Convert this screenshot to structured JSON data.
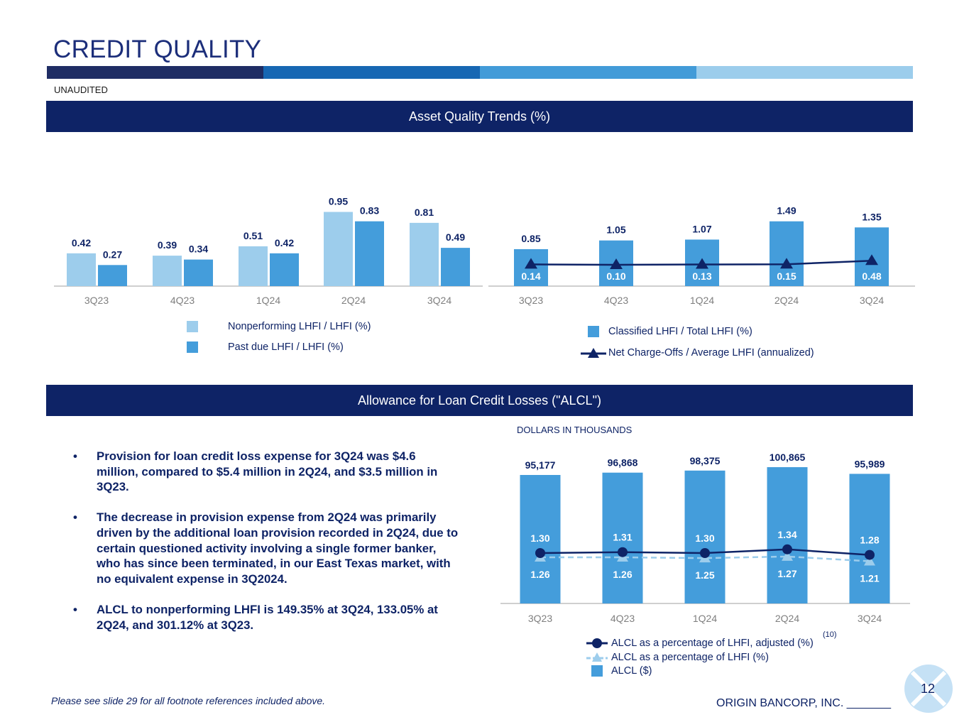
{
  "page": {
    "title": "CREDIT QUALITY",
    "unaudited": "UNAUDITED",
    "footnote": "Please see slide 29 for all footnote references included above.",
    "company": "ORIGIN BANCORP, INC. _______",
    "page_number": "12",
    "colors": {
      "navy": "#0e2366",
      "blue": "#449ddb",
      "light_blue": "#9dcdec",
      "band": [
        "#1f2d64",
        "#1767b3",
        "#429bd8",
        "#9ccdec"
      ]
    }
  },
  "sections": {
    "asset_quality_header": "Asset Quality Trends (%)",
    "alcl_header": "Allowance for Loan Credit Losses (\"ALCL\")",
    "dollars_label": "DOLLARS IN THOUSANDS"
  },
  "bullets": [
    "Provision for loan credit loss expense for 3Q24 was $4.6 million, compared to $5.4 million in 2Q24, and $3.5 million in 3Q23.",
    "The decrease in provision expense from 2Q24 was primarily driven by the additional loan provision recorded in 2Q24, due to certain questioned activity involving a single former banker, who has since been terminated, in our East Texas market, with no equivalent expense in 3Q2024.",
    "ALCL to nonperforming LHFI is 149.35% at 3Q24, 133.05% at 2Q24, and 301.12% at 3Q23."
  ],
  "legends": {
    "chart1": [
      "Nonperforming LHFI / LHFI (%)",
      "Past due LHFI / LHFI (%)"
    ],
    "chart2": [
      "Classified LHFI / Total LHFI (%)",
      "Net Charge-Offs / Average LHFI (annualized)"
    ],
    "chart3": [
      "ALCL as a percentage of LHFI, adjusted (%)",
      "ALCL as a percentage of LHFI (%)",
      "ALCL ($)"
    ],
    "chart3_superscript": "(10)"
  },
  "chart_data": [
    {
      "type": "bar",
      "title": "Asset Quality Trends (%)",
      "categories": [
        "3Q23",
        "4Q23",
        "1Q24",
        "2Q24",
        "3Q24"
      ],
      "series": [
        {
          "name": "Nonperforming LHFI / LHFI (%)",
          "values": [
            0.42,
            0.39,
            0.51,
            0.95,
            0.81
          ],
          "labels": [
            "0.42",
            "0.39",
            "0.51",
            "0.95",
            "0.81"
          ]
        },
        {
          "name": "Past due LHFI / LHFI (%)",
          "values": [
            0.27,
            0.34,
            0.42,
            0.83,
            0.49
          ],
          "labels": [
            "0.27",
            "0.34",
            "0.42",
            "0.83",
            "0.49"
          ]
        }
      ],
      "ylim": [
        0,
        1.0
      ]
    },
    {
      "type": "bar",
      "title": "Asset Quality Trends (%)",
      "categories": [
        "3Q23",
        "4Q23",
        "1Q24",
        "2Q24",
        "3Q24"
      ],
      "series": [
        {
          "name": "Classified LHFI / Total LHFI (%)",
          "values": [
            0.85,
            1.05,
            1.07,
            1.49,
            1.35
          ],
          "labels": [
            "0.85",
            "1.05",
            "1.07",
            "1.49",
            "1.35"
          ]
        },
        {
          "name": "Net Charge-Offs / Average LHFI (annualized)",
          "type": "line",
          "values": [
            0.14,
            0.1,
            0.13,
            0.15,
            0.48
          ],
          "labels": [
            "0.14",
            "0.10",
            "0.13",
            "0.15",
            "0.48"
          ]
        }
      ],
      "ylim": [
        0,
        1.6
      ]
    },
    {
      "type": "bar",
      "title": "Allowance for Loan Credit Losses (\"ALCL\")",
      "categories": [
        "3Q23",
        "4Q23",
        "1Q24",
        "2Q24",
        "3Q24"
      ],
      "series": [
        {
          "name": "ALCL ($)",
          "values": [
            95177,
            96868,
            98375,
            100865,
            95989
          ],
          "labels": [
            "95,177",
            "96,868",
            "98,375",
            "100,865",
            "95,989"
          ]
        },
        {
          "name": "ALCL as a percentage of LHFI, adjusted (%)",
          "type": "line",
          "values": [
            1.3,
            1.31,
            1.3,
            1.34,
            1.28
          ],
          "labels": [
            "1.30",
            "1.31",
            "1.30",
            "1.34",
            "1.28"
          ]
        },
        {
          "name": "ALCL as a percentage of LHFI (%)",
          "type": "line",
          "values": [
            1.26,
            1.26,
            1.25,
            1.27,
            1.21
          ],
          "labels": [
            "1.26",
            "1.26",
            "1.25",
            "1.27",
            "1.21"
          ]
        }
      ],
      "ylabel": "DOLLARS IN THOUSANDS",
      "ylim": [
        0,
        105000
      ]
    }
  ]
}
